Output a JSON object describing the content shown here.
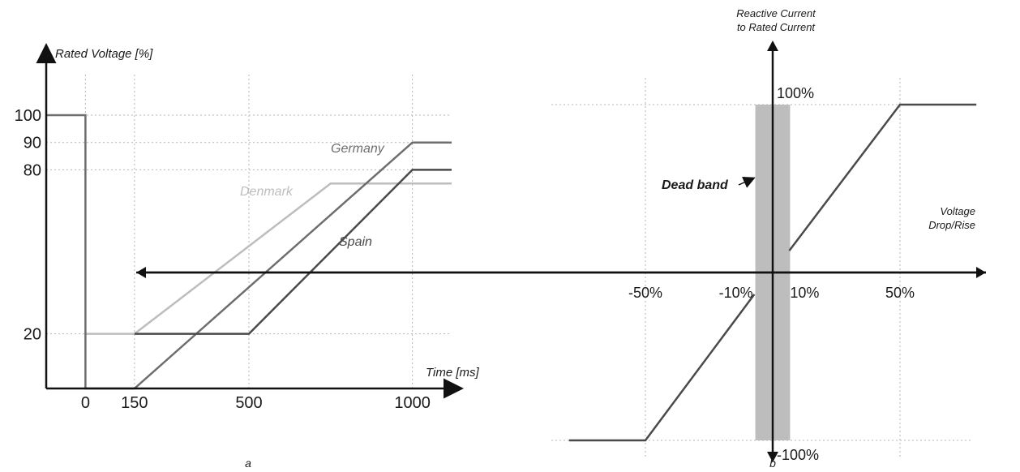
{
  "chart_data": [
    {
      "panel": "a",
      "type": "line",
      "ylabel": "Rated Voltage [%]",
      "xlabel": "Time [ms]",
      "x_ticks": [
        "0",
        "150",
        "500",
        "1000"
      ],
      "y_ticks": [
        "20",
        "80",
        "90",
        "100"
      ],
      "xlim": [
        -120,
        1120
      ],
      "ylim": [
        0,
        100
      ],
      "grid": true,
      "series": [
        {
          "name": "Germany",
          "color": "#6d6d6d",
          "points": [
            [
              -120,
              100
            ],
            [
              0,
              100
            ],
            [
              0,
              0
            ],
            [
              150,
              0
            ],
            [
              1000,
              90
            ],
            [
              1120,
              90
            ]
          ]
        },
        {
          "name": "Denmark",
          "color": "#bdbdbd",
          "points": [
            [
              0,
              20
            ],
            [
              150,
              20
            ],
            [
              750,
              75
            ],
            [
              1120,
              75
            ]
          ]
        },
        {
          "name": "Spain",
          "color": "#4a4a4a",
          "points": [
            [
              150,
              20
            ],
            [
              500,
              20
            ],
            [
              1000,
              80
            ],
            [
              1120,
              80
            ]
          ]
        }
      ]
    },
    {
      "panel": "b",
      "type": "line",
      "ylabel_lines": [
        "Reactive Current",
        "to Rated Current"
      ],
      "xlabel_lines": [
        "Voltage",
        "Drop/Rise"
      ],
      "x_ticks": [
        "-50%",
        "-10%",
        "10%",
        "50%"
      ],
      "y_ticks": [
        "100%",
        "-100%"
      ],
      "xlim": [
        -80,
        80
      ],
      "ylim": [
        -100,
        100
      ],
      "grid": true,
      "dead_band": {
        "label": "Dead band",
        "from": -3,
        "to": 3
      },
      "series": [
        {
          "name": "",
          "color": "#4a4a4a",
          "segments": [
            [
              [
                -80,
                -100
              ],
              [
                -50,
                -100
              ],
              [
                -3,
                -13
              ]
            ],
            [
              [
                3,
                13
              ],
              [
                50,
                100
              ],
              [
                80,
                100
              ]
            ]
          ]
        }
      ]
    }
  ],
  "captions": {
    "a": "a",
    "b": "b"
  }
}
